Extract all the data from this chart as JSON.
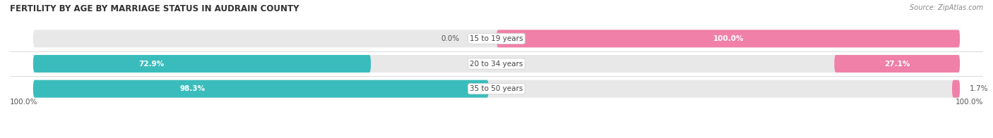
{
  "title": "FERTILITY BY AGE BY MARRIAGE STATUS IN AUDRAIN COUNTY",
  "source": "Source: ZipAtlas.com",
  "categories": [
    "15 to 19 years",
    "20 to 34 years",
    "35 to 50 years"
  ],
  "married_pct": [
    0.0,
    72.9,
    98.3
  ],
  "unmarried_pct": [
    100.0,
    27.1,
    1.7
  ],
  "married_color": "#3BBCBC",
  "unmarried_color": "#F080A8",
  "bar_bg_color": "#E8E8E8",
  "title_fontsize": 8.5,
  "source_fontsize": 7,
  "label_fontsize": 7.5,
  "category_fontsize": 7.5,
  "legend_fontsize": 8,
  "figsize": [
    14.06,
    1.96
  ],
  "dpi": 100
}
